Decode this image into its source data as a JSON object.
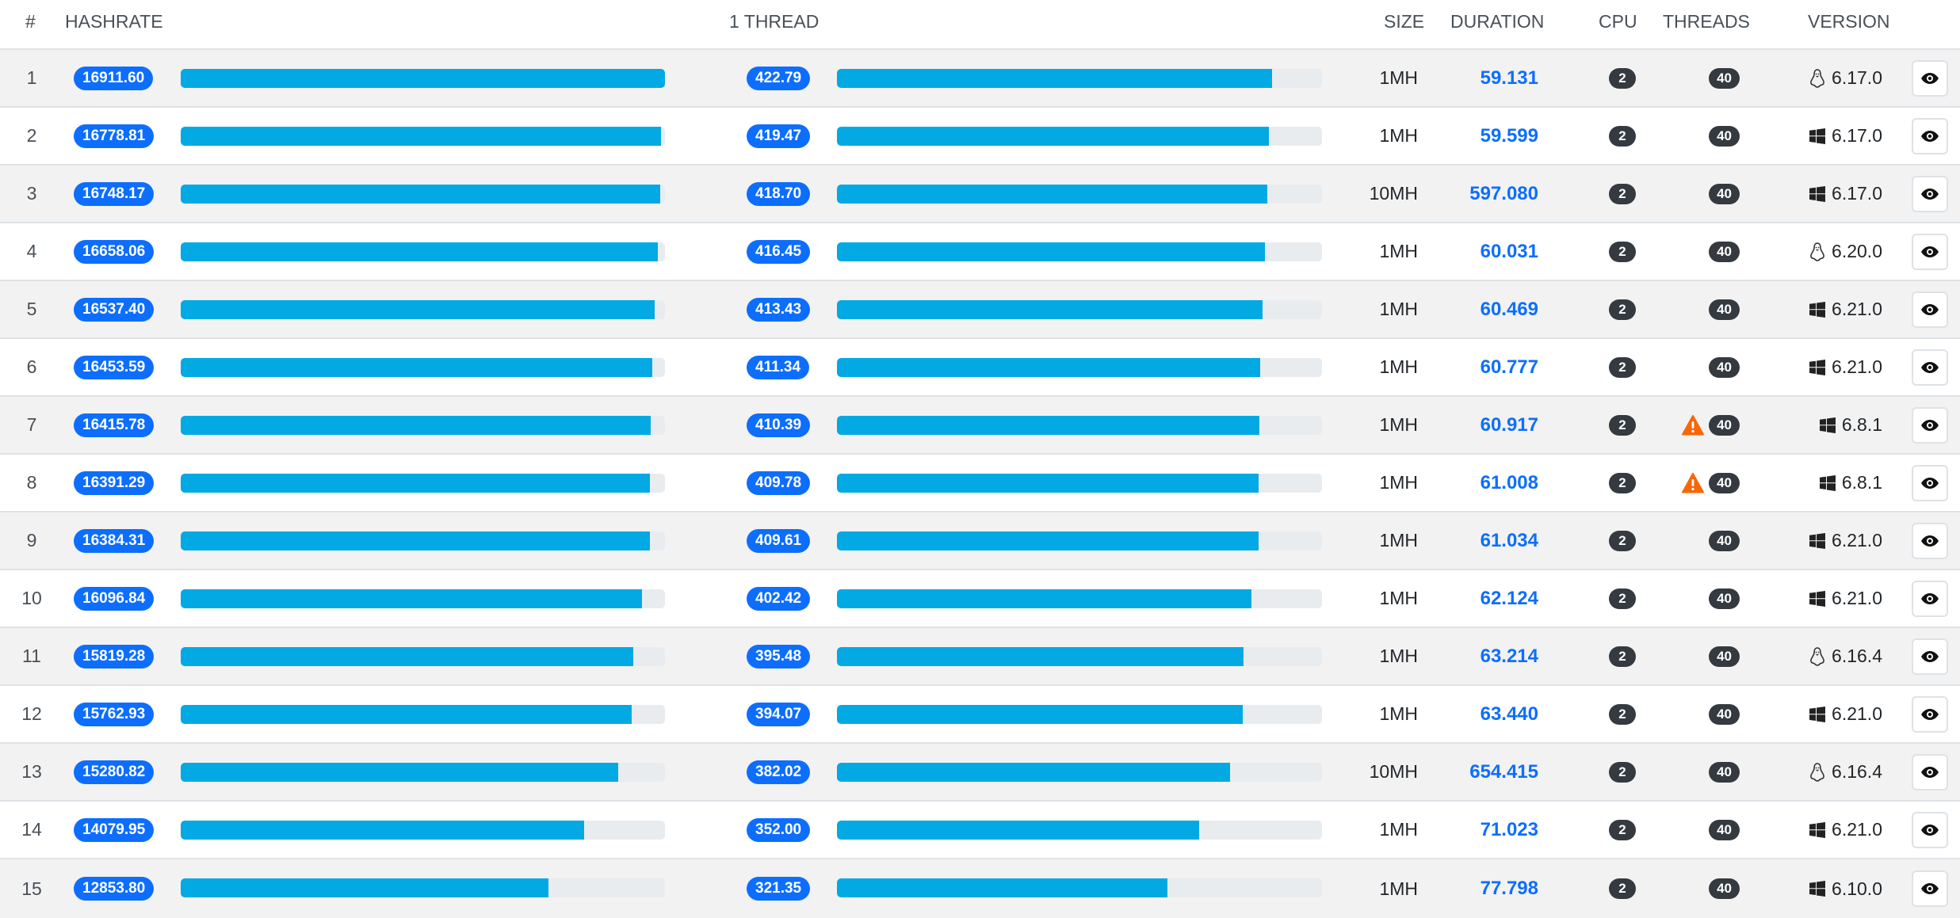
{
  "headers": {
    "index": "#",
    "hashrate": "HASHRATE",
    "thread": "1 THREAD",
    "size": "SIZE",
    "duration": "DURATION",
    "cpu": "CPU",
    "threads": "THREADS",
    "version": "VERSION"
  },
  "colors": {
    "bar_fill": "#03a9e3",
    "bar_track": "#e9ecef",
    "badge_blue": "#0d6efd",
    "badge_dark": "#343a40",
    "warning": "#f76707"
  },
  "rows": [
    {
      "rank": "1",
      "hashrate": "16911.60",
      "hashrate_fraction": 1.0,
      "thread": "422.79",
      "thread_fraction": 0.897,
      "size": "1MH",
      "duration": "59.131",
      "cpu": "2",
      "threads": "40",
      "warning": false,
      "os_icon": "linux-icon",
      "version": "6.17.0"
    },
    {
      "rank": "2",
      "hashrate": "16778.81",
      "hashrate_fraction": 0.992,
      "thread": "419.47",
      "thread_fraction": 0.89,
      "size": "1MH",
      "duration": "59.599",
      "cpu": "2",
      "threads": "40",
      "warning": false,
      "os_icon": "windows-icon",
      "version": "6.17.0"
    },
    {
      "rank": "3",
      "hashrate": "16748.17",
      "hashrate_fraction": 0.99,
      "thread": "418.70",
      "thread_fraction": 0.888,
      "size": "10MH",
      "duration": "597.080",
      "cpu": "2",
      "threads": "40",
      "warning": false,
      "os_icon": "windows-icon",
      "version": "6.17.0"
    },
    {
      "rank": "4",
      "hashrate": "16658.06",
      "hashrate_fraction": 0.985,
      "thread": "416.45",
      "thread_fraction": 0.883,
      "size": "1MH",
      "duration": "60.031",
      "cpu": "2",
      "threads": "40",
      "warning": false,
      "os_icon": "linux-icon",
      "version": "6.20.0"
    },
    {
      "rank": "5",
      "hashrate": "16537.40",
      "hashrate_fraction": 0.978,
      "thread": "413.43",
      "thread_fraction": 0.877,
      "size": "1MH",
      "duration": "60.469",
      "cpu": "2",
      "threads": "40",
      "warning": false,
      "os_icon": "windows-icon",
      "version": "6.21.0"
    },
    {
      "rank": "6",
      "hashrate": "16453.59",
      "hashrate_fraction": 0.973,
      "thread": "411.34",
      "thread_fraction": 0.873,
      "size": "1MH",
      "duration": "60.777",
      "cpu": "2",
      "threads": "40",
      "warning": false,
      "os_icon": "windows-icon",
      "version": "6.21.0"
    },
    {
      "rank": "7",
      "hashrate": "16415.78",
      "hashrate_fraction": 0.971,
      "thread": "410.39",
      "thread_fraction": 0.871,
      "size": "1MH",
      "duration": "60.917",
      "cpu": "2",
      "threads": "40",
      "warning": true,
      "os_icon": "windows-icon",
      "version": "6.8.1"
    },
    {
      "rank": "8",
      "hashrate": "16391.29",
      "hashrate_fraction": 0.969,
      "thread": "409.78",
      "thread_fraction": 0.869,
      "size": "1MH",
      "duration": "61.008",
      "cpu": "2",
      "threads": "40",
      "warning": true,
      "os_icon": "windows-icon",
      "version": "6.8.1"
    },
    {
      "rank": "9",
      "hashrate": "16384.31",
      "hashrate_fraction": 0.969,
      "thread": "409.61",
      "thread_fraction": 0.869,
      "size": "1MH",
      "duration": "61.034",
      "cpu": "2",
      "threads": "40",
      "warning": false,
      "os_icon": "windows-icon",
      "version": "6.21.0"
    },
    {
      "rank": "10",
      "hashrate": "16096.84",
      "hashrate_fraction": 0.952,
      "thread": "402.42",
      "thread_fraction": 0.854,
      "size": "1MH",
      "duration": "62.124",
      "cpu": "2",
      "threads": "40",
      "warning": false,
      "os_icon": "windows-icon",
      "version": "6.21.0"
    },
    {
      "rank": "11",
      "hashrate": "15819.28",
      "hashrate_fraction": 0.935,
      "thread": "395.48",
      "thread_fraction": 0.839,
      "size": "1MH",
      "duration": "63.214",
      "cpu": "2",
      "threads": "40",
      "warning": false,
      "os_icon": "linux-icon",
      "version": "6.16.4"
    },
    {
      "rank": "12",
      "hashrate": "15762.93",
      "hashrate_fraction": 0.932,
      "thread": "394.07",
      "thread_fraction": 0.836,
      "size": "1MH",
      "duration": "63.440",
      "cpu": "2",
      "threads": "40",
      "warning": false,
      "os_icon": "windows-icon",
      "version": "6.21.0"
    },
    {
      "rank": "13",
      "hashrate": "15280.82",
      "hashrate_fraction": 0.904,
      "thread": "382.02",
      "thread_fraction": 0.811,
      "size": "10MH",
      "duration": "654.415",
      "cpu": "2",
      "threads": "40",
      "warning": false,
      "os_icon": "linux-icon",
      "version": "6.16.4"
    },
    {
      "rank": "14",
      "hashrate": "14079.95",
      "hashrate_fraction": 0.833,
      "thread": "352.00",
      "thread_fraction": 0.747,
      "size": "1MH",
      "duration": "71.023",
      "cpu": "2",
      "threads": "40",
      "warning": false,
      "os_icon": "windows-icon",
      "version": "6.21.0"
    },
    {
      "rank": "15",
      "hashrate": "12853.80",
      "hashrate_fraction": 0.76,
      "thread": "321.35",
      "thread_fraction": 0.682,
      "size": "1MH",
      "duration": "77.798",
      "cpu": "2",
      "threads": "40",
      "warning": false,
      "os_icon": "windows-icon",
      "version": "6.10.0"
    }
  ]
}
